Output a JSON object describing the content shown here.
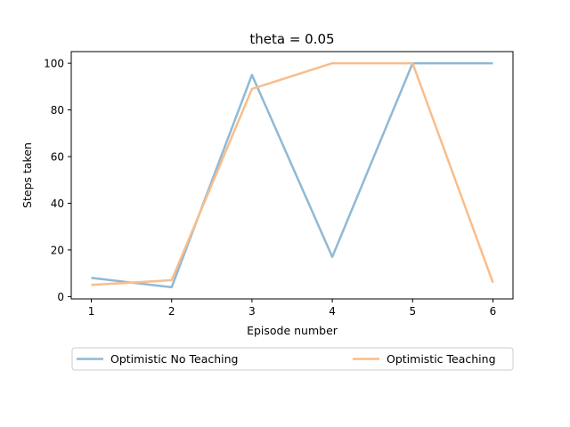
{
  "chart_data": {
    "type": "line",
    "title": "theta = 0.05",
    "xlabel": "Episode number",
    "ylabel": "Steps taken",
    "x": [
      1,
      2,
      3,
      4,
      5,
      6
    ],
    "xticks": [
      "1",
      "2",
      "3",
      "4",
      "5",
      "6"
    ],
    "yticks": [
      "0",
      "20",
      "40",
      "60",
      "80",
      "100"
    ],
    "xlim": [
      0.75,
      6.25
    ],
    "ylim": [
      -1,
      105
    ],
    "grid": false,
    "legend_placement": "below",
    "series": [
      {
        "name": "Optimistic No Teaching",
        "color": "#8fb9d5",
        "values": [
          8,
          4,
          95,
          17,
          100,
          100
        ]
      },
      {
        "name": "Optimistic Teaching",
        "color": "#f9bd8a",
        "values": [
          5,
          7,
          89,
          100,
          100,
          6
        ]
      }
    ]
  }
}
